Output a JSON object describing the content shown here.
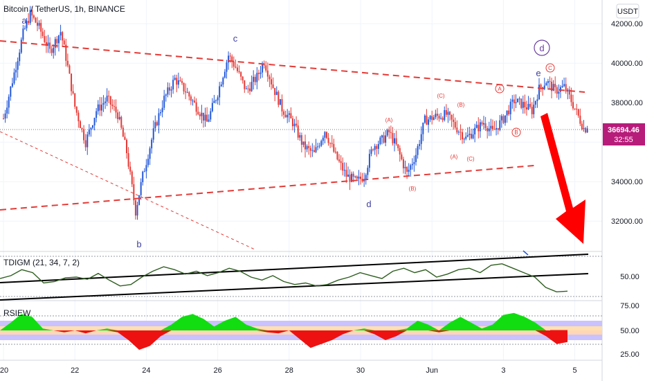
{
  "header": {
    "title": "Bitcoin / TetherUS, 1h, BINANCE",
    "currency_button": "USDT"
  },
  "price_badge": {
    "value": "36694.46",
    "timer": "32:55",
    "color": "#b71c7a"
  },
  "colors": {
    "up": "#2257d8",
    "down": "#e53935",
    "trendline": "#e53935",
    "wave_label": "#3f3f9f",
    "sub_wave": "#e53935",
    "tdi": "#2e5e1f",
    "rsi_green": "#11dd11",
    "rsi_red": "#ee1111"
  },
  "chart_data": [
    {
      "type": "candlestick",
      "title": "Bitcoin / TetherUS, 1h, BINANCE",
      "ylim": [
        30500,
        43200
      ],
      "y_ticks": [
        32000,
        34000,
        36000,
        38000,
        40000,
        42000
      ],
      "y_tick_labels": [
        "32000.00",
        "34000.00",
        "36000.00",
        "38000.00",
        "40000.00",
        "42000.00"
      ],
      "x_range": [
        20.0,
        5.05
      ],
      "x_ticks": [
        "20",
        "22",
        "24",
        "26",
        "28",
        "30",
        "Jun",
        "3",
        "5"
      ],
      "last_price": 36694.46,
      "price_path": [
        [
          20.0,
          37200
        ],
        [
          20.3,
          39500
        ],
        [
          20.55,
          41500
        ],
        [
          20.75,
          42500
        ],
        [
          21.0,
          41800
        ],
        [
          21.3,
          40600
        ],
        [
          21.6,
          41600
        ],
        [
          21.75,
          40300
        ],
        [
          22.0,
          37800
        ],
        [
          22.3,
          36000
        ],
        [
          22.6,
          37600
        ],
        [
          22.9,
          38200
        ],
        [
          23.2,
          37400
        ],
        [
          23.45,
          35500
        ],
        [
          23.7,
          32500
        ],
        [
          23.9,
          34300
        ],
        [
          24.2,
          36500
        ],
        [
          24.5,
          38200
        ],
        [
          24.8,
          39200
        ],
        [
          25.1,
          38600
        ],
        [
          25.4,
          37800
        ],
        [
          25.7,
          37000
        ],
        [
          26.0,
          38500
        ],
        [
          26.3,
          40400
        ],
        [
          26.5,
          39800
        ],
        [
          26.8,
          38600
        ],
        [
          27.1,
          39300
        ],
        [
          27.3,
          40100
        ],
        [
          27.55,
          38800
        ],
        [
          27.8,
          37700
        ],
        [
          28.1,
          37000
        ],
        [
          28.4,
          35800
        ],
        [
          28.7,
          35400
        ],
        [
          29.0,
          36600
        ],
        [
          29.3,
          35300
        ],
        [
          29.6,
          34300
        ],
        [
          29.9,
          34000
        ],
        [
          30.1,
          34300
        ],
        [
          30.35,
          35800
        ],
        [
          30.6,
          36100
        ],
        [
          30.8,
          36500
        ],
        [
          31.0,
          35800
        ],
        [
          31.3,
          34400
        ],
        [
          31.55,
          35400
        ],
        [
          31.8,
          37100
        ],
        [
          32.1,
          37300
        ],
        [
          32.4,
          37400
        ],
        [
          32.7,
          36700
        ],
        [
          32.95,
          36200
        ],
        [
          33.2,
          36600
        ],
        [
          33.45,
          37000
        ],
        [
          33.7,
          36500
        ],
        [
          34.0,
          37200
        ],
        [
          34.3,
          38100
        ],
        [
          34.55,
          37900
        ],
        [
          34.8,
          37600
        ],
        [
          35.0,
          38700
        ],
        [
          35.2,
          39100
        ],
        [
          35.45,
          38600
        ],
        [
          35.7,
          38800
        ],
        [
          35.9,
          38100
        ],
        [
          36.1,
          37300
        ],
        [
          36.25,
          36700
        ],
        [
          36.35,
          36694
        ]
      ]
    },
    {
      "type": "line",
      "title": "TDIGM (21, 34, 7, 2)",
      "y_tick_labels": [
        "50.00"
      ],
      "series": [
        {
          "name": "TDIGM",
          "values": [
            48,
            52,
            60,
            56,
            42,
            44,
            49,
            50,
            47,
            55,
            46,
            38,
            40,
            50,
            58,
            64,
            60,
            54,
            58,
            52,
            56,
            62,
            58,
            50,
            46,
            52,
            44,
            40,
            42,
            38,
            40,
            46,
            50,
            56,
            52,
            48,
            58,
            62,
            56,
            60,
            50,
            54,
            60,
            62,
            56,
            66,
            68,
            62,
            56,
            50,
            36,
            30,
            31
          ]
        }
      ]
    },
    {
      "type": "area",
      "title": "RSIEW",
      "y_ticks": [
        25,
        50,
        75
      ],
      "y_tick_labels": [
        "25.00",
        "50.00",
        "75.00"
      ],
      "series": [
        {
          "name": "RSIEW",
          "values": [
            50,
            58,
            67,
            64,
            52,
            50,
            48,
            50,
            47,
            50,
            52,
            48,
            40,
            30,
            34,
            44,
            56,
            64,
            67,
            62,
            54,
            60,
            64,
            56,
            52,
            48,
            47,
            50,
            41,
            32,
            36,
            40,
            46,
            50,
            52,
            46,
            40,
            44,
            52,
            60,
            56,
            48,
            58,
            64,
            58,
            52,
            56,
            66,
            68,
            64,
            58,
            44,
            36,
            38
          ]
        }
      ]
    }
  ],
  "annotations": {
    "wave_a": "a",
    "wave_b": "b",
    "wave_c": "c",
    "wave_d_low": "d",
    "wave_e": "e",
    "wave_d_circled": "d",
    "sub_A1": "(A)",
    "sub_B1": "(B)",
    "sub_C1": "(C)",
    "sub_A2": "(A)",
    "sub_B2": "(B)",
    "sub_C2": "(C)",
    "sub_A3": "A",
    "sub_B3": "B",
    "sub_C3": "C"
  }
}
